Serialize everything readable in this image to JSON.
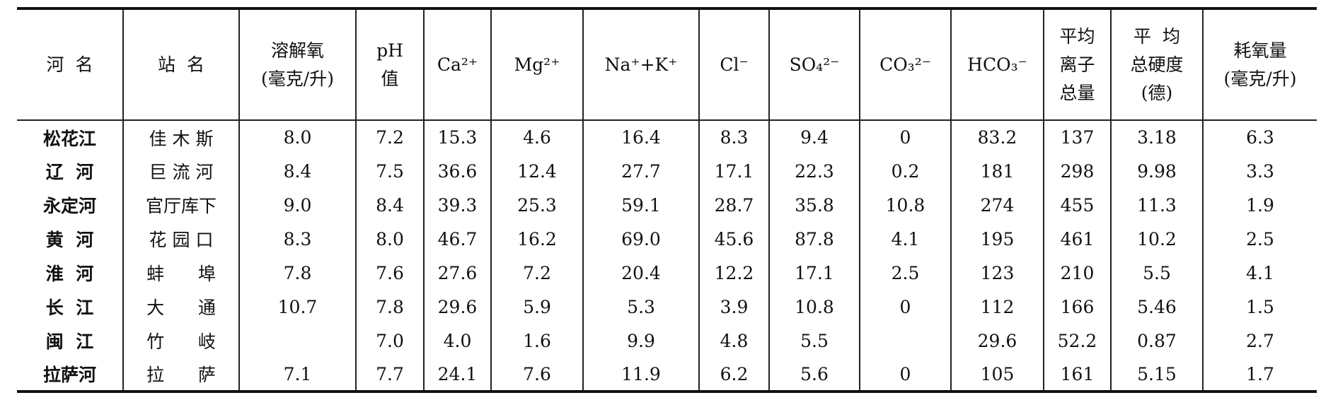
{
  "table": {
    "header": [
      [
        "河  名"
      ],
      [
        "站  名"
      ],
      [
        "溶解氧",
        "(毫克/升)"
      ],
      [
        "pH",
        "值"
      ],
      [
        "Ca²⁺"
      ],
      [
        "Mg²⁺"
      ],
      [
        "Na⁺+K⁺"
      ],
      [
        "Cl⁻"
      ],
      [
        "SO₄²⁻"
      ],
      [
        "CO₃²⁻"
      ],
      [
        "HCO₃⁻"
      ],
      [
        "平均",
        "离子",
        "总量"
      ],
      [
        "平  均",
        "总硬度",
        "(德)"
      ],
      [
        "耗氧量",
        "(毫克/升)"
      ]
    ],
    "rows": [
      [
        "松花江",
        "佳 木 斯",
        "8.0",
        "7.2",
        "15.3",
        "4.6",
        "16.4",
        "8.3",
        "9.4",
        "0",
        "83.2",
        "137",
        "3.18",
        "6.3"
      ],
      [
        "辽  河",
        "巨 流 河",
        "8.4",
        "7.5",
        "36.6",
        "12.4",
        "27.7",
        "17.1",
        "22.3",
        "0.2",
        "181",
        "298",
        "9.98",
        "3.3"
      ],
      [
        "永定河",
        "官厅库下",
        "9.0",
        "8.4",
        "39.3",
        "25.3",
        "59.1",
        "28.7",
        "35.8",
        "10.8",
        "274",
        "455",
        "11.3",
        "1.9"
      ],
      [
        "黄  河",
        "花 园 口",
        "8.3",
        "8.0",
        "46.7",
        "16.2",
        "69.0",
        "45.6",
        "87.8",
        "4.1",
        "195",
        "461",
        "10.2",
        "2.5"
      ],
      [
        "淮  河",
        "蚌      埠",
        "7.8",
        "7.6",
        "27.6",
        "7.2",
        "20.4",
        "12.2",
        "17.1",
        "2.5",
        "123",
        "210",
        "5.5",
        "4.1"
      ],
      [
        "长  江",
        "大      通",
        "10.7",
        "7.8",
        "29.6",
        "5.9",
        "5.3",
        "3.9",
        "10.8",
        "0",
        "112",
        "166",
        "5.46",
        "1.5"
      ],
      [
        "闽  江",
        "竹      岐",
        null,
        "7.0",
        "4.0",
        "1.6",
        "9.9",
        "4.8",
        "5.5",
        null,
        "29.6",
        "52.2",
        "0.87",
        "2.7"
      ],
      [
        "拉萨河",
        "拉      萨",
        "7.1",
        "7.7",
        "24.1",
        "7.6",
        "11.9",
        "6.2",
        "5.6",
        "0",
        "105",
        "161",
        "5.15",
        "1.7"
      ]
    ]
  }
}
